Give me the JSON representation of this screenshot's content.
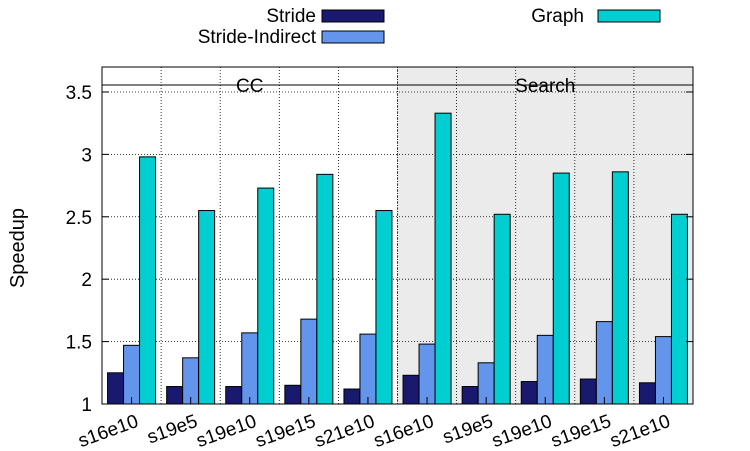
{
  "chart_data": {
    "type": "bar",
    "title": "",
    "xlabel": "",
    "ylabel": "Speedup",
    "ylim": [
      1,
      3.7
    ],
    "yticks": [
      1,
      1.5,
      2,
      2.5,
      3,
      3.5
    ],
    "grid": true,
    "legend_position": "top",
    "groups": [
      {
        "label": "CC",
        "shaded": false,
        "categories": [
          "s16e10",
          "s19e5",
          "s19e10",
          "s19e15",
          "s21e10"
        ]
      },
      {
        "label": "Search",
        "shaded": true,
        "categories": [
          "s16e10",
          "s19e5",
          "s19e10",
          "s19e15",
          "s21e10"
        ]
      }
    ],
    "categories": [
      "s16e10",
      "s19e5",
      "s19e10",
      "s19e15",
      "s21e10",
      "s16e10",
      "s19e5",
      "s19e10",
      "s19e15",
      "s21e10"
    ],
    "series": [
      {
        "name": "Stride",
        "color": "#191970",
        "values": [
          1.25,
          1.14,
          1.14,
          1.15,
          1.12,
          1.23,
          1.14,
          1.18,
          1.2,
          1.17
        ]
      },
      {
        "name": "Stride-Indirect",
        "color": "#6495ED",
        "values": [
          1.47,
          1.37,
          1.57,
          1.68,
          1.56,
          1.48,
          1.33,
          1.55,
          1.66,
          1.54
        ]
      },
      {
        "name": "Graph",
        "color": "#00CED1",
        "values": [
          2.98,
          2.55,
          2.73,
          2.84,
          2.55,
          3.33,
          2.52,
          2.85,
          2.86,
          2.52
        ]
      }
    ]
  }
}
